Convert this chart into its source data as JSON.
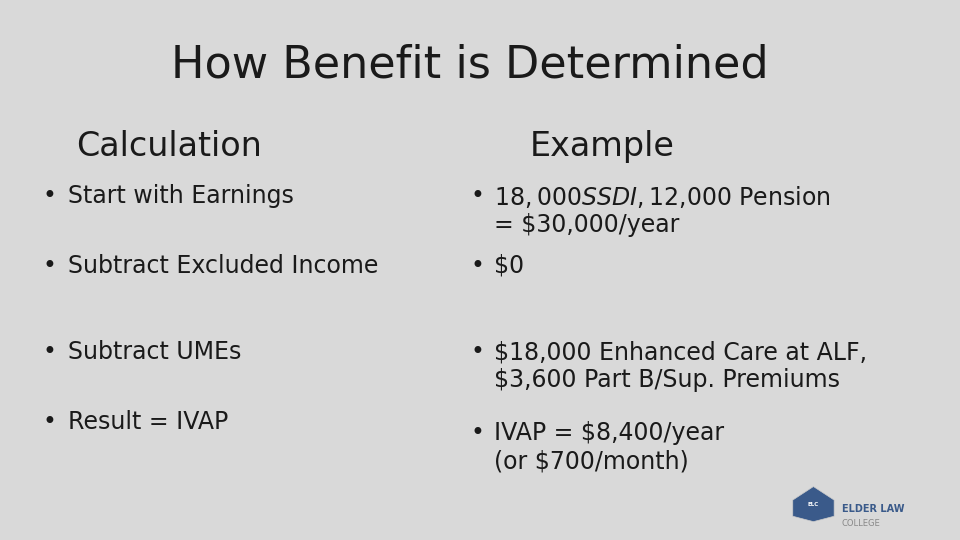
{
  "title": "How Benefit is Determined",
  "bg_color": "#d9d9d9",
  "text_color": "#1a1a1a",
  "col1_header": "Calculation",
  "col2_header": "Example",
  "col1_items": [
    "Start with Earnings",
    "Subtract Excluded Income",
    "Subtract UMEs",
    "Result = IVAP"
  ],
  "col2_items": [
    "$18,000 SSDI, $12,000 Pension\n= $30,000/year",
    "$0",
    "$18,000 Enhanced Care at ALF,\n$3,600 Part B/Sup. Premiums",
    "IVAP = $8,400/year\n(or $700/month)"
  ],
  "title_fontsize": 32,
  "header_fontsize": 24,
  "body_fontsize": 17,
  "footer_text_line1": "ELDER LAW",
  "footer_text_line2": "COLLEGE",
  "shield_color": "#3a5a8a",
  "footer_color1": "#3a5a8a",
  "footer_color2": "#888888"
}
